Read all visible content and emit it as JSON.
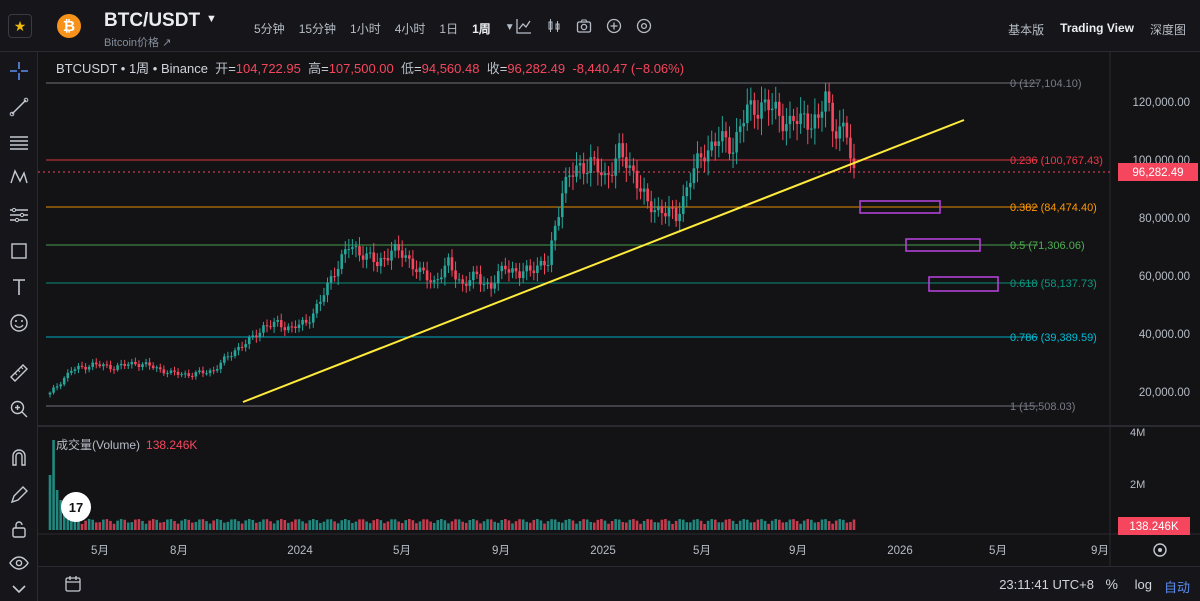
{
  "header": {
    "coin_glyph": "₿",
    "pair": "BTC/USDT",
    "subtitle": "Bitcoin价格",
    "intervals": [
      "5分钟",
      "15分钟",
      "1小时",
      "4小时",
      "1日",
      "1周"
    ],
    "active_interval": "1周",
    "view_tabs": [
      "基本版",
      "Trading View",
      "深度图"
    ],
    "active_view": "Trading View"
  },
  "legend": {
    "symbol": "BTCUSDT",
    "interval": "1周",
    "exchange": "Binance",
    "open_label": "开",
    "open": "104,722.95",
    "high_label": "高",
    "high": "107,500.00",
    "low_label": "低",
    "low": "94,560.48",
    "close_label": "收",
    "close": "96,282.49",
    "change": "-8,440.47 (−8.06%)"
  },
  "volume": {
    "label": "成交量(Volume)",
    "value": "138.246K",
    "axis_labels": [
      "4M",
      "2M"
    ],
    "badge": "138.246K"
  },
  "price_axis": {
    "labels": [
      "120,000.00",
      "100,000.00",
      "80,000.00",
      "60,000.00",
      "40,000.00",
      "20,000.00"
    ],
    "current_price": "96,282.49",
    "current_color": "#f6465d"
  },
  "time_axis": {
    "labels": [
      "5月",
      "8月",
      "2024",
      "5月",
      "9月",
      "2025",
      "5月",
      "9月",
      "2026",
      "5月",
      "9月"
    ]
  },
  "fib_levels": [
    {
      "label": "0 (127,104.10)",
      "value": 127104.1,
      "color": "#787b86"
    },
    {
      "label": "0.236 (100,767.43)",
      "value": 100767.43,
      "color": "#f23645"
    },
    {
      "label": "0.382 (84,474.40)",
      "value": 84474.4,
      "color": "#ff9800"
    },
    {
      "label": "0.5 (71,306.06)",
      "value": 71306.06,
      "color": "#4caf50"
    },
    {
      "label": "0.618 (58,137.73)",
      "value": 58137.73,
      "color": "#089981"
    },
    {
      "label": "0.786 (39,389.59)",
      "value": 39389.59,
      "color": "#00bcd4"
    },
    {
      "label": "1 (15,508.03)",
      "value": 15508.03,
      "color": "#787b86"
    }
  ],
  "colors": {
    "up": "#26a69a",
    "down": "#f6465d",
    "trendline": "#ffeb3b",
    "zone": "#b042d6",
    "accent": "#f0b90b"
  },
  "footer": {
    "clock": "23:11:41 UTC+8",
    "percent": "%",
    "log": "log",
    "auto": "自动"
  },
  "icons": {
    "top": [
      "line-chart-icon",
      "candles-icon",
      "camera-icon",
      "plus-circle-icon",
      "settings-circle-icon"
    ],
    "left": [
      "crosshair-icon",
      "trendline-icon",
      "fib-icon",
      "pattern-icon",
      "measure-lines-icon",
      "rectangle-icon",
      "text-icon",
      "emoji-icon",
      "ruler-icon",
      "zoom-icon",
      "magnet-icon",
      "pencil-lock-icon",
      "lock-icon",
      "eye-icon",
      "chevron-down-icon"
    ]
  }
}
